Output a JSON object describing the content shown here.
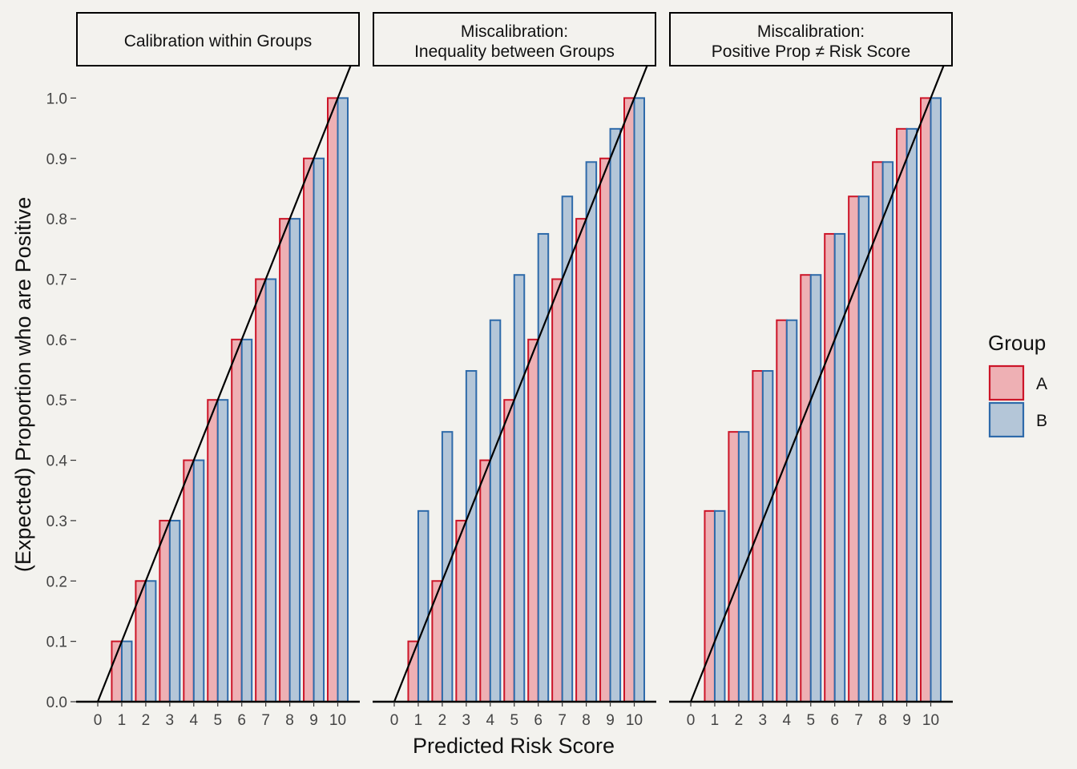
{
  "chart_data": {
    "type": "bar",
    "x_tick_labels": [
      "0",
      "1",
      "2",
      "3",
      "4",
      "5",
      "6",
      "7",
      "8",
      "9",
      "10"
    ],
    "y_tick_labels": [
      "0.0",
      "0.1",
      "0.2",
      "0.3",
      "0.4",
      "0.5",
      "0.6",
      "0.7",
      "0.8",
      "0.9",
      "1.0"
    ],
    "ylim": [
      0,
      1.05
    ],
    "xlabel": "Predicted Risk Score",
    "ylabel": "(Expected) Proportion who are Positive",
    "legend": {
      "title": "Group",
      "position": "right",
      "entries": [
        {
          "name": "A",
          "fill": "#eeb0b4",
          "stroke": "#cc1528"
        },
        {
          "name": "B",
          "fill": "#b4c6d8",
          "stroke": "#2e6aaa"
        }
      ]
    },
    "reference_line": {
      "x0": 0,
      "y0": 0,
      "slope": 0.1
    },
    "panels": [
      {
        "title_lines": [
          "Calibration within Groups"
        ],
        "series": [
          {
            "name": "A",
            "values": [
              0,
              0.1,
              0.2,
              0.3,
              0.4,
              0.5,
              0.6,
              0.7,
              0.8,
              0.9,
              1.0
            ]
          },
          {
            "name": "B",
            "values": [
              0,
              0.1,
              0.2,
              0.3,
              0.4,
              0.5,
              0.6,
              0.7,
              0.8,
              0.9,
              1.0
            ]
          }
        ]
      },
      {
        "title_lines": [
          "Miscalibration:",
          "Inequality between Groups"
        ],
        "series": [
          {
            "name": "A",
            "values": [
              0,
              0.1,
              0.2,
              0.3,
              0.4,
              0.5,
              0.6,
              0.7,
              0.8,
              0.9,
              1.0
            ]
          },
          {
            "name": "B",
            "values": [
              0,
              0.316,
              0.447,
              0.548,
              0.632,
              0.707,
              0.775,
              0.837,
              0.894,
              0.949,
              1.0
            ]
          }
        ]
      },
      {
        "title_lines": [
          "Miscalibration:",
          "Positive Prop ≠ Risk Score"
        ],
        "series": [
          {
            "name": "A",
            "values": [
              0,
              0.316,
              0.447,
              0.548,
              0.632,
              0.707,
              0.775,
              0.837,
              0.894,
              0.949,
              1.0
            ]
          },
          {
            "name": "B",
            "values": [
              0,
              0.316,
              0.447,
              0.548,
              0.632,
              0.707,
              0.775,
              0.837,
              0.894,
              0.949,
              1.0
            ]
          }
        ]
      }
    ]
  }
}
